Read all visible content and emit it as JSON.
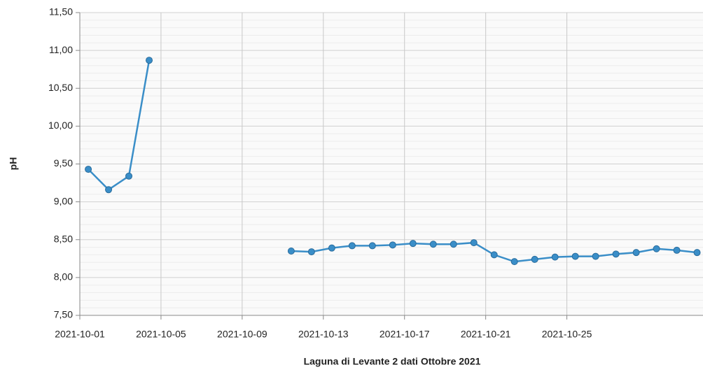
{
  "chart_data": {
    "type": "line",
    "title": "Laguna di Levante 2 dati Ottobre 2021",
    "y_label": "pH",
    "x": [
      "2021-10-01T10:00",
      "2021-10-02T10:00",
      "2021-10-03T10:00",
      "2021-10-04T10:00",
      "2021-10-05T10:00",
      "2021-10-06T10:00",
      "2021-10-07T10:00",
      "2021-10-08T10:00",
      "2021-10-09T10:00",
      "2021-10-10T10:00",
      "2021-10-11T10:00",
      "2021-10-12T10:00",
      "2021-10-13T10:00",
      "2021-10-14T10:00",
      "2021-10-15T10:00",
      "2021-10-16T10:00",
      "2021-10-17T10:00",
      "2021-10-18T10:00",
      "2021-10-19T10:00",
      "2021-10-20T10:00",
      "2021-10-21T10:00",
      "2021-10-22T10:00",
      "2021-10-23T10:00",
      "2021-10-24T10:00",
      "2021-10-25T10:00",
      "2021-10-26T10:00",
      "2021-10-27T10:00",
      "2021-10-28T10:00",
      "2021-10-29T10:00",
      "2021-10-30T10:00",
      "2021-10-31T10:00"
    ],
    "series": [
      {
        "name": "pH",
        "color": "#3a8ec8",
        "values": [
          9.43,
          9.16,
          9.34,
          10.87,
          null,
          null,
          null,
          null,
          null,
          null,
          8.35,
          8.34,
          8.39,
          8.42,
          8.42,
          8.43,
          8.45,
          8.44,
          8.44,
          8.46,
          8.3,
          8.21,
          8.24,
          8.27,
          8.28,
          8.28,
          8.31,
          8.33,
          8.38,
          8.36,
          8.33
        ]
      }
    ],
    "xlim": [
      "2021-10-01T00:00",
      "2021-10-31T17:00"
    ],
    "xticks": [
      "2021-10-01",
      "2021-10-05",
      "2021-10-09",
      "2021-10-13",
      "2021-10-17",
      "2021-10-21",
      "2021-10-25"
    ],
    "ylim": [
      7.5,
      11.5
    ],
    "yticks": [
      {
        "value": 7.5,
        "label": "7,50"
      },
      {
        "value": 8,
        "label": "8,00"
      },
      {
        "value": 8.5,
        "label": "8,50"
      },
      {
        "value": 9,
        "label": "9,00"
      },
      {
        "value": 9.5,
        "label": "9,50"
      },
      {
        "value": 10,
        "label": "10,00"
      },
      {
        "value": 10.5,
        "label": "10,50"
      },
      {
        "value": 11,
        "label": "11,00"
      },
      {
        "value": 11.5,
        "label": "11,50"
      }
    ],
    "grid": true
  }
}
